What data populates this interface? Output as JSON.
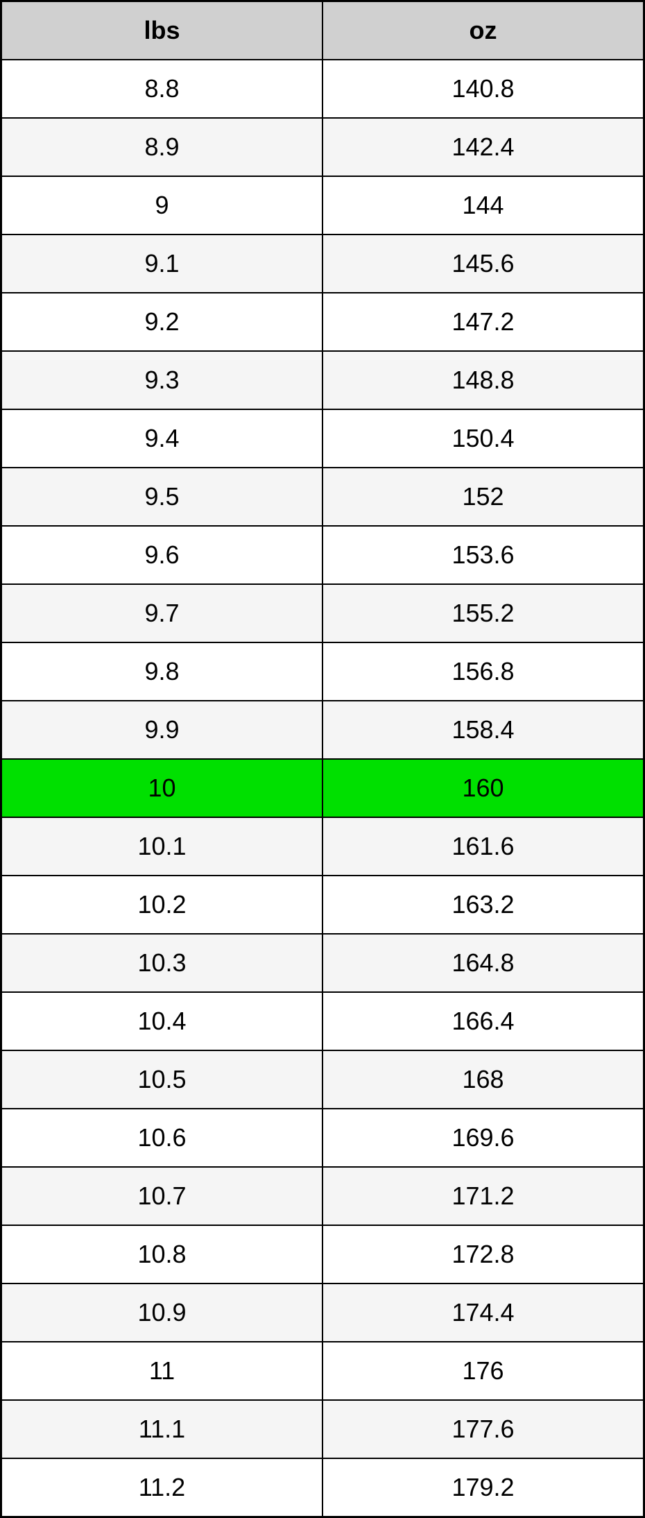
{
  "table": {
    "type": "table",
    "columns": [
      {
        "key": "lbs",
        "label": "lbs"
      },
      {
        "key": "oz",
        "label": "oz"
      }
    ],
    "header_bg": "#d0d0d0",
    "header_fontsize": 36,
    "header_fontweight": "bold",
    "cell_fontsize": 36,
    "border_color": "#000000",
    "row_alt_bg": "#f5f5f5",
    "row_bg": "#ffffff",
    "highlight_bg": "#00e000",
    "text_color": "#000000",
    "rows": [
      {
        "lbs": "8.8",
        "oz": "140.8",
        "highlight": false,
        "alt": false
      },
      {
        "lbs": "8.9",
        "oz": "142.4",
        "highlight": false,
        "alt": true
      },
      {
        "lbs": "9",
        "oz": "144",
        "highlight": false,
        "alt": false
      },
      {
        "lbs": "9.1",
        "oz": "145.6",
        "highlight": false,
        "alt": true
      },
      {
        "lbs": "9.2",
        "oz": "147.2",
        "highlight": false,
        "alt": false
      },
      {
        "lbs": "9.3",
        "oz": "148.8",
        "highlight": false,
        "alt": true
      },
      {
        "lbs": "9.4",
        "oz": "150.4",
        "highlight": false,
        "alt": false
      },
      {
        "lbs": "9.5",
        "oz": "152",
        "highlight": false,
        "alt": true
      },
      {
        "lbs": "9.6",
        "oz": "153.6",
        "highlight": false,
        "alt": false
      },
      {
        "lbs": "9.7",
        "oz": "155.2",
        "highlight": false,
        "alt": true
      },
      {
        "lbs": "9.8",
        "oz": "156.8",
        "highlight": false,
        "alt": false
      },
      {
        "lbs": "9.9",
        "oz": "158.4",
        "highlight": false,
        "alt": true
      },
      {
        "lbs": "10",
        "oz": "160",
        "highlight": true,
        "alt": false
      },
      {
        "lbs": "10.1",
        "oz": "161.6",
        "highlight": false,
        "alt": true
      },
      {
        "lbs": "10.2",
        "oz": "163.2",
        "highlight": false,
        "alt": false
      },
      {
        "lbs": "10.3",
        "oz": "164.8",
        "highlight": false,
        "alt": true
      },
      {
        "lbs": "10.4",
        "oz": "166.4",
        "highlight": false,
        "alt": false
      },
      {
        "lbs": "10.5",
        "oz": "168",
        "highlight": false,
        "alt": true
      },
      {
        "lbs": "10.6",
        "oz": "169.6",
        "highlight": false,
        "alt": false
      },
      {
        "lbs": "10.7",
        "oz": "171.2",
        "highlight": false,
        "alt": true
      },
      {
        "lbs": "10.8",
        "oz": "172.8",
        "highlight": false,
        "alt": false
      },
      {
        "lbs": "10.9",
        "oz": "174.4",
        "highlight": false,
        "alt": true
      },
      {
        "lbs": "11",
        "oz": "176",
        "highlight": false,
        "alt": false
      },
      {
        "lbs": "11.1",
        "oz": "177.6",
        "highlight": false,
        "alt": true
      },
      {
        "lbs": "11.2",
        "oz": "179.2",
        "highlight": false,
        "alt": false
      }
    ]
  }
}
